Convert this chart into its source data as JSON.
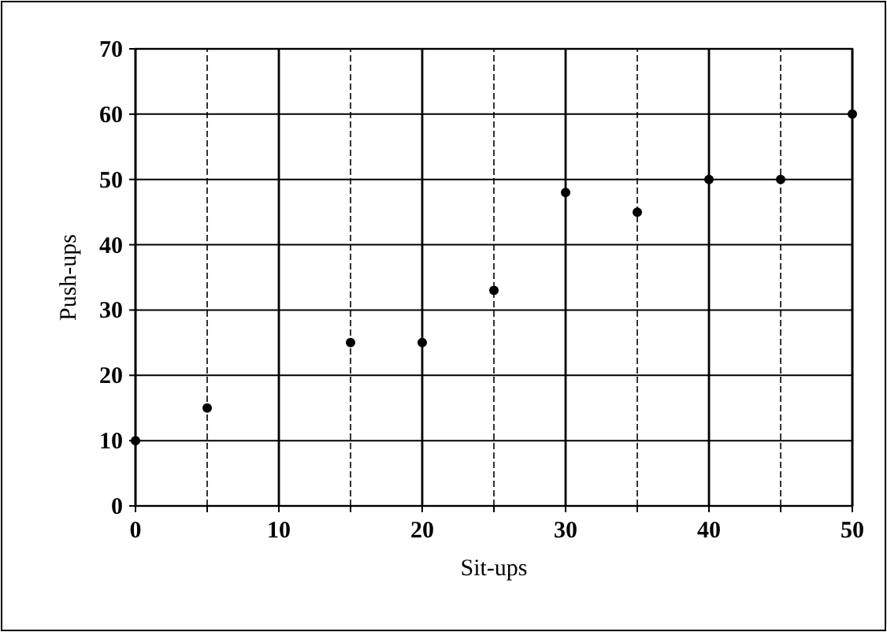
{
  "chart_data": {
    "type": "scatter",
    "xlabel": "Sit-ups",
    "ylabel": "Push-ups",
    "x": [
      0,
      5,
      15,
      20,
      25,
      30,
      35,
      40,
      45,
      50
    ],
    "values": [
      10,
      15,
      25,
      25,
      33,
      48,
      45,
      50,
      50,
      60
    ],
    "color": "#000000",
    "marker": "circle",
    "xlim": [
      0,
      50
    ],
    "ylim": [
      0,
      70
    ],
    "xticks": [
      0,
      {
        "value": 5,
        "label": null
      },
      10,
      {
        "value": 15,
        "label": null
      },
      20,
      {
        "value": 25,
        "label": null
      },
      30,
      {
        "value": 35,
        "label": null
      },
      40,
      {
        "value": 45,
        "label": null
      },
      50
    ],
    "yticks": [
      0,
      10,
      20,
      30,
      40,
      50,
      60,
      70
    ],
    "grid": true
  }
}
